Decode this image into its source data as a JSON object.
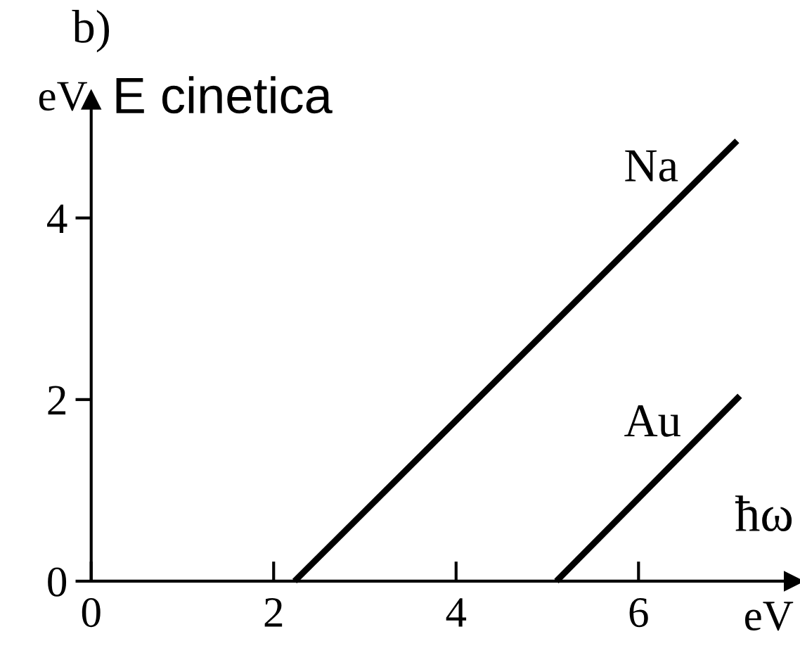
{
  "chart_data": {
    "type": "line",
    "title": "b)",
    "ylabel": "E cinetica",
    "xlabel": "ħω",
    "annotations": [
      "eV",
      "eV"
    ],
    "xlim": [
      0,
      7.7
    ],
    "ylim": [
      0,
      5.3
    ],
    "xticks": [
      0,
      2,
      4,
      6
    ],
    "yticks": [
      0,
      2,
      4
    ],
    "grid": false,
    "marker": "none",
    "line_style": "solid",
    "series": [
      {
        "name": "Na",
        "color": "#000000",
        "x": [
          2.23,
          7.08
        ],
        "values": [
          0,
          4.85
        ]
      },
      {
        "name": "Au",
        "color": "#000000",
        "x": [
          5.1,
          7.11
        ],
        "values": [
          0,
          2.04
        ]
      }
    ]
  }
}
